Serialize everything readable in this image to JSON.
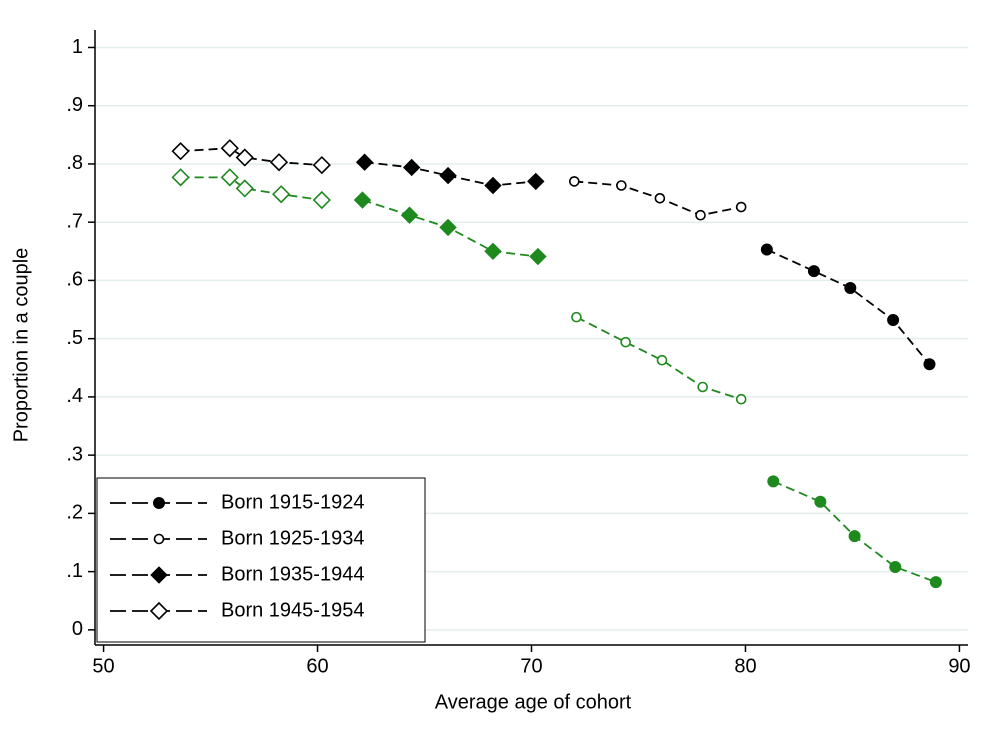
{
  "chart_data": {
    "type": "line",
    "x_label": "Average age of cohort",
    "y_label": "Proportion in a couple",
    "xlim": [
      49.6,
      90.4
    ],
    "ylim": [
      -0.026,
      1.03
    ],
    "xticks": [
      50,
      60,
      70,
      80,
      90
    ],
    "yticks": [
      0,
      {
        "value": 0.1,
        "label": ".1"
      },
      {
        "value": 0.2,
        "label": ".2"
      },
      {
        "value": 0.3,
        "label": ".3"
      },
      {
        "value": 0.4,
        "label": ".4"
      },
      {
        "value": 0.5,
        "label": ".5"
      },
      {
        "value": 0.6,
        "label": ".6"
      },
      {
        "value": 0.7,
        "label": ".7"
      },
      {
        "value": 0.8,
        "label": ".8"
      },
      {
        "value": 0.9,
        "label": ".9"
      },
      1
    ],
    "grid": true,
    "legend_position": "lower-left",
    "series": [
      {
        "name": "Born 1915-1924",
        "color": "#000000",
        "marker": "circle",
        "x": [
          81.0,
          83.2,
          84.9,
          86.9,
          88.6
        ],
        "values": [
          0.653,
          0.616,
          0.587,
          0.532,
          0.456
        ]
      },
      {
        "name": "Born 1925-1934",
        "color": "#000000",
        "marker": "circle-open",
        "x": [
          72.0,
          74.2,
          76.0,
          77.9,
          79.8
        ],
        "values": [
          0.77,
          0.763,
          0.741,
          0.712,
          0.726
        ]
      },
      {
        "name": "Born 1935-1944",
        "color": "#000000",
        "marker": "diamond",
        "x": [
          62.2,
          64.4,
          66.1,
          68.2,
          70.2
        ],
        "values": [
          0.803,
          0.794,
          0.78,
          0.763,
          0.77
        ]
      },
      {
        "name": "Born 1945-1954",
        "color": "#000000",
        "marker": "diamond-open",
        "x": [
          53.6,
          55.9,
          56.6,
          58.2,
          60.2
        ],
        "values": [
          0.822,
          0.827,
          0.811,
          0.803,
          0.798
        ]
      },
      {
        "color": "#1e8a1e",
        "marker": "circle",
        "x": [
          81.3,
          83.5,
          85.1,
          87.0,
          88.9
        ],
        "values": [
          0.255,
          0.22,
          0.161,
          0.108,
          0.082
        ]
      },
      {
        "color": "#1e8a1e",
        "marker": "circle-open",
        "x": [
          72.1,
          74.4,
          76.1,
          78.0,
          79.8
        ],
        "values": [
          0.537,
          0.494,
          0.463,
          0.417,
          0.396
        ]
      },
      {
        "color": "#1e8a1e",
        "marker": "diamond",
        "x": [
          62.1,
          64.3,
          66.1,
          68.2,
          70.3
        ],
        "values": [
          0.738,
          0.712,
          0.691,
          0.65,
          0.641
        ]
      },
      {
        "color": "#1e8a1e",
        "marker": "diamond-open",
        "x": [
          53.6,
          55.9,
          56.6,
          58.3,
          60.2
        ],
        "values": [
          0.777,
          0.777,
          0.758,
          0.748,
          0.738
        ]
      }
    ]
  }
}
